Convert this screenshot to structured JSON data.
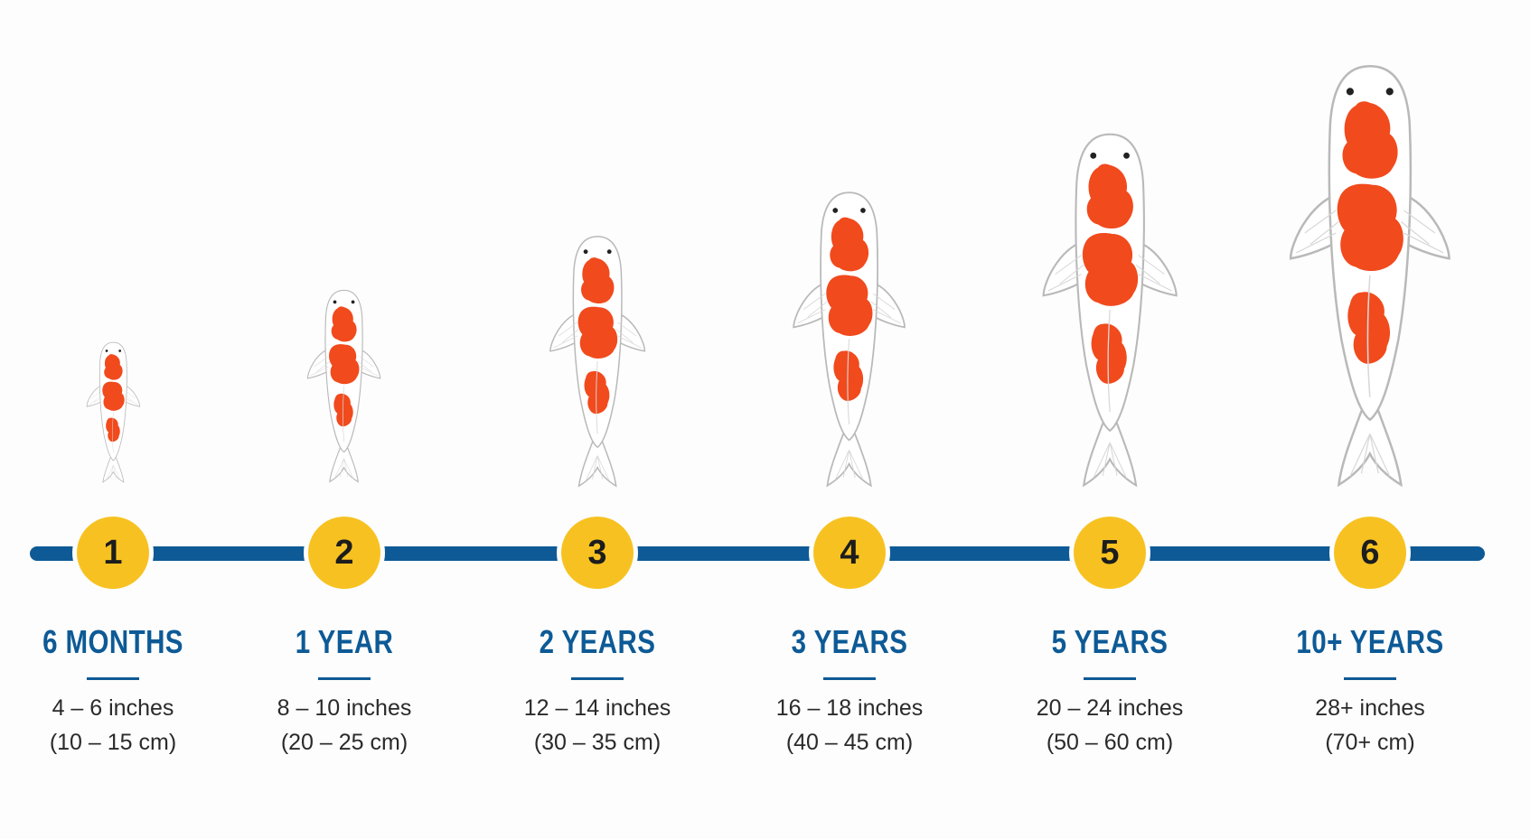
{
  "colors": {
    "timeline": "#0d5a96",
    "badge": "#f7c221",
    "age_text": "#0d5a96",
    "koi_red": "#f14a1d",
    "koi_body": "#ffffff",
    "koi_outline": "#b9b9b9"
  },
  "stages": [
    {
      "number": "1",
      "age": "6 MONTHS",
      "size_inches": "4 – 6 inches",
      "size_cm": "(10 – 15 cm)"
    },
    {
      "number": "2",
      "age": "1 YEAR",
      "size_inches": "8 – 10 inches",
      "size_cm": "(20 – 25 cm)"
    },
    {
      "number": "3",
      "age": "2 YEARS",
      "size_inches": "12 – 14 inches",
      "size_cm": "(30 – 35 cm)"
    },
    {
      "number": "4",
      "age": "3 YEARS",
      "size_inches": "16 – 18 inches",
      "size_cm": "(40 – 45 cm)"
    },
    {
      "number": "5",
      "age": "5 YEARS",
      "size_inches": "20 – 24 inches",
      "size_cm": "(50 – 60 cm)"
    },
    {
      "number": "6",
      "age": "10+ YEARS",
      "size_inches": "28+ inches",
      "size_cm": "(70+ cm)"
    }
  ]
}
